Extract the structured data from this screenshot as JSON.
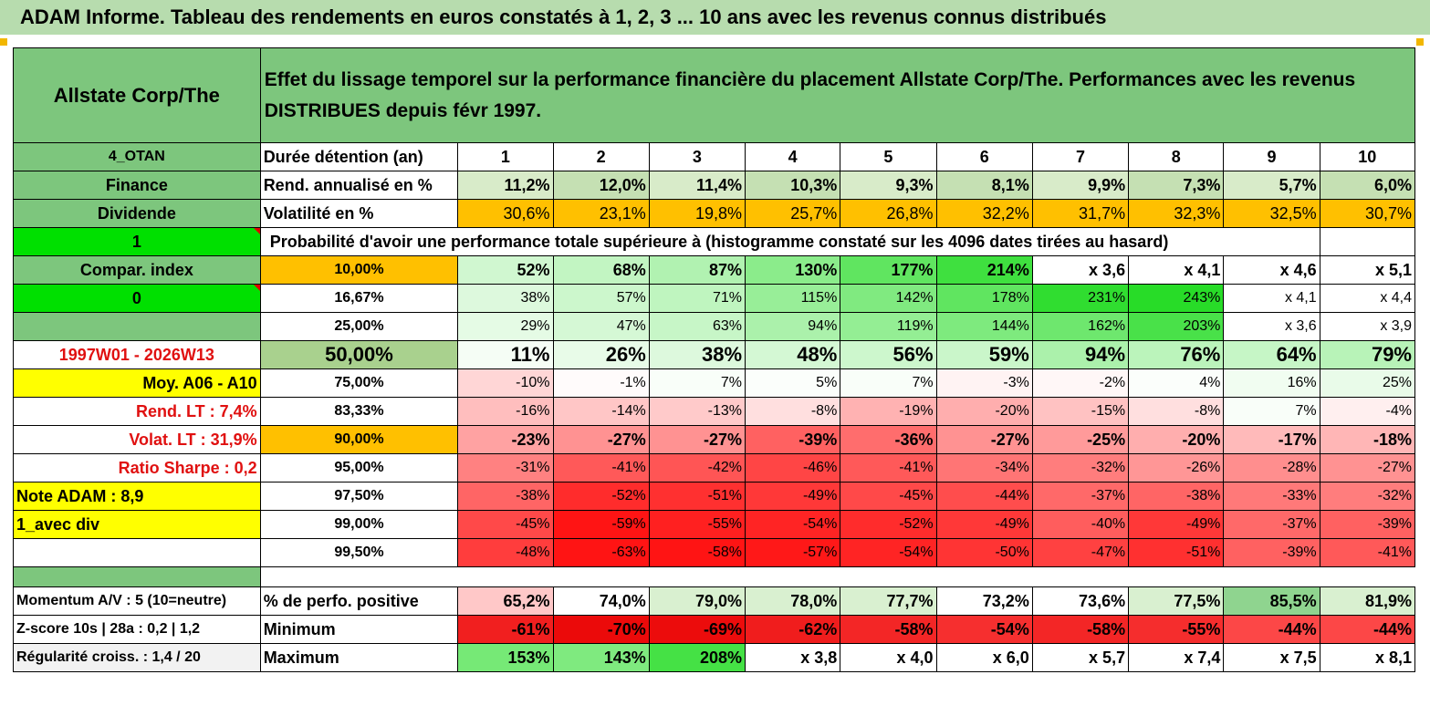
{
  "title": "ADAM Informe. Tableau des rendements en euros constatés à 1, 2, 3 ... 10 ans avec les revenus connus distribués",
  "colors": {
    "header_green": "#7dc67d",
    "bright_green": "#00e000",
    "yellow": "#ffff00",
    "orange": "#ffc000",
    "red_text": "#e01010"
  },
  "header": {
    "company": "Allstate Corp/The",
    "description": "Effet du lissage temporel sur la performance financière du placement Allstate Corp/The. Performances avec les revenus DISTRIBUES depuis févr 1997."
  },
  "side": {
    "s1": "4_OTAN",
    "s2": "Finance",
    "s3": "Dividende",
    "s4": "1",
    "s5": "Compar. index",
    "s6": "0",
    "s7": "",
    "s8": "1997W01 - 2026W13",
    "s9": "Moy. A06 - A10",
    "s10": "Rend. LT :   7,4%",
    "s11": "Volat. LT :   31,9%",
    "s12": "Ratio Sharpe :    0,2",
    "s13": "Note ADAM : 8,9",
    "s14": "1_avec div",
    "s15": ""
  },
  "labels": {
    "duration": "Durée détention (an)",
    "rend": "Rend. annualisé en %",
    "vol": "Volatilité en %",
    "prob": "Probabilité d'avoir une performance totale supérieure à (histogramme constaté sur les 4096 dates tirées au hasard)"
  },
  "years": [
    "1",
    "2",
    "3",
    "4",
    "5",
    "6",
    "7",
    "8",
    "9",
    "10"
  ],
  "rend": [
    "11,2%",
    "12,0%",
    "11,4%",
    "10,3%",
    "9,3%",
    "8,1%",
    "9,9%",
    "7,3%",
    "5,7%",
    "6,0%"
  ],
  "vol": [
    "30,6%",
    "23,1%",
    "19,8%",
    "25,7%",
    "26,8%",
    "32,2%",
    "31,7%",
    "32,3%",
    "32,5%",
    "30,7%"
  ],
  "prob_rows": [
    {
      "pct": "10,00%",
      "values": [
        "52%",
        "68%",
        "87%",
        "130%",
        "177%",
        "214%",
        "x 3,6",
        "x 4,1",
        "x 4,6",
        "x 5,1"
      ]
    },
    {
      "pct": "16,67%",
      "values": [
        "38%",
        "57%",
        "71%",
        "115%",
        "142%",
        "178%",
        "231%",
        "243%",
        "x 4,1",
        "x 4,4"
      ]
    },
    {
      "pct": "25,00%",
      "values": [
        "29%",
        "47%",
        "63%",
        "94%",
        "119%",
        "144%",
        "162%",
        "203%",
        "x 3,6",
        "x 3,9"
      ]
    },
    {
      "pct": "50,00%",
      "values": [
        "11%",
        "26%",
        "38%",
        "48%",
        "56%",
        "59%",
        "94%",
        "76%",
        "64%",
        "79%"
      ]
    },
    {
      "pct": "75,00%",
      "values": [
        "-10%",
        "-1%",
        "7%",
        "5%",
        "7%",
        "-3%",
        "-2%",
        "4%",
        "16%",
        "25%"
      ]
    },
    {
      "pct": "83,33%",
      "values": [
        "-16%",
        "-14%",
        "-13%",
        "-8%",
        "-19%",
        "-20%",
        "-15%",
        "-8%",
        "7%",
        "-4%"
      ]
    },
    {
      "pct": "90,00%",
      "values": [
        "-23%",
        "-27%",
        "-27%",
        "-39%",
        "-36%",
        "-27%",
        "-25%",
        "-20%",
        "-17%",
        "-18%"
      ]
    },
    {
      "pct": "95,00%",
      "values": [
        "-31%",
        "-41%",
        "-42%",
        "-46%",
        "-41%",
        "-34%",
        "-32%",
        "-26%",
        "-28%",
        "-27%"
      ]
    },
    {
      "pct": "97,50%",
      "values": [
        "-38%",
        "-52%",
        "-51%",
        "-49%",
        "-45%",
        "-44%",
        "-37%",
        "-38%",
        "-33%",
        "-32%"
      ]
    },
    {
      "pct": "99,00%",
      "values": [
        "-45%",
        "-59%",
        "-55%",
        "-54%",
        "-52%",
        "-49%",
        "-40%",
        "-49%",
        "-37%",
        "-39%"
      ]
    },
    {
      "pct": "99,50%",
      "values": [
        "-48%",
        "-63%",
        "-58%",
        "-57%",
        "-54%",
        "-50%",
        "-47%",
        "-51%",
        "-39%",
        "-41%"
      ]
    }
  ],
  "bottom": [
    {
      "side": "Momentum A/V : 5 (10=neutre)",
      "label": "% de perfo. positive",
      "values": [
        "65,2%",
        "74,0%",
        "79,0%",
        "78,0%",
        "77,7%",
        "73,2%",
        "73,6%",
        "77,5%",
        "85,5%",
        "81,9%"
      ]
    },
    {
      "side": "Z-score 10s | 28a : 0,2 | 1,2",
      "label": "Minimum",
      "values": [
        "-61%",
        "-70%",
        "-69%",
        "-62%",
        "-58%",
        "-54%",
        "-58%",
        "-55%",
        "-44%",
        "-44%"
      ]
    },
    {
      "side": "Régularité croiss. : 1,4 / 20",
      "label": "Maximum",
      "values": [
        "153%",
        "143%",
        "208%",
        "x 3,8",
        "x 4,0",
        "x 6,0",
        "x 5,7",
        "x 7,4",
        "x 7,5",
        "x 8,1"
      ]
    }
  ]
}
